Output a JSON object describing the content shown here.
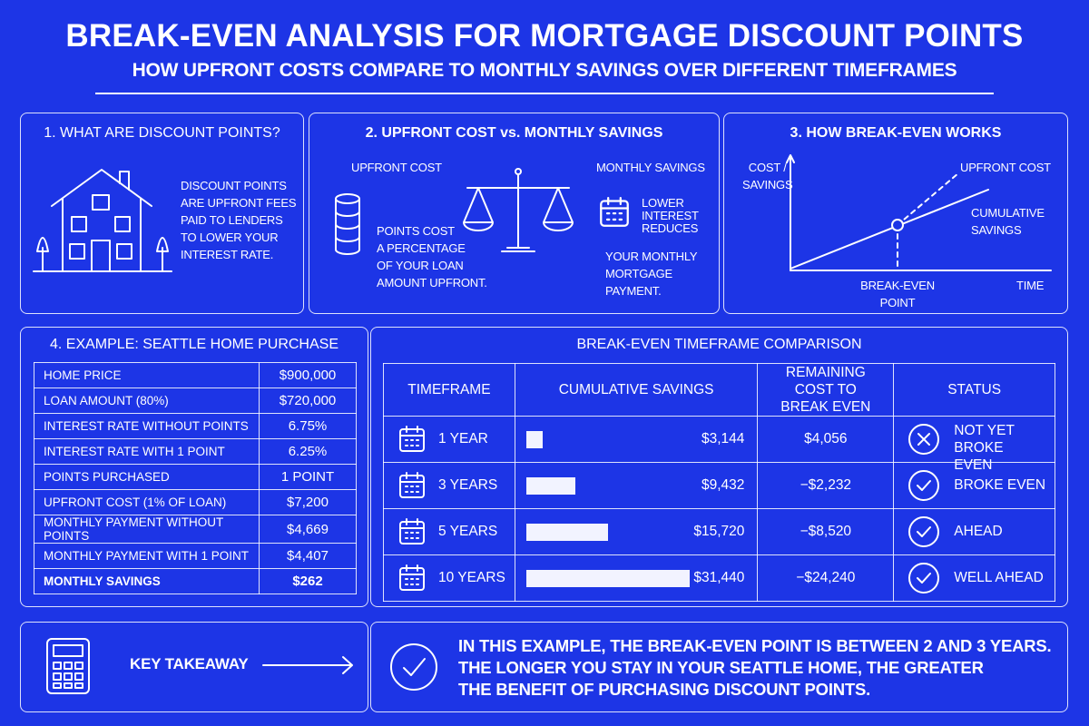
{
  "header": {
    "title": "BREAK-EVEN ANALYSIS FOR MORTGAGE DISCOUNT POINTS",
    "subtitle": "HOW UPFRONT COSTS COMPARE TO MONTHLY SAVINGS OVER DIFFERENT TIMEFRAMES"
  },
  "panel1": {
    "title": "1. WHAT ARE DISCOUNT POINTS?",
    "lines": [
      "DISCOUNT POINTS",
      "ARE UPFRONT FEES",
      "PAID TO LENDERS",
      "TO LOWER YOUR",
      "INTEREST RATE."
    ]
  },
  "panel2": {
    "title": "2. UPFRONT COST vs. MONTHLY SAVINGS",
    "upfront_label": "UPFRONT COST",
    "upfront_lines": [
      "POINTS COST",
      "A PERCENTAGE",
      "OF YOUR LOAN",
      "AMOUNT UPFRONT."
    ],
    "savings_label": "MONTHLY SAVINGS",
    "savings_lines": [
      "LOWER",
      "INTEREST",
      "REDUCES",
      "YOUR MONTHLY",
      "MORTGAGE",
      "PAYMENT."
    ]
  },
  "panel3": {
    "title": "3. HOW BREAK-EVEN WORKS",
    "y_label": [
      "COST /",
      "SAVINGS"
    ],
    "upfront_label": "UPFRONT COST",
    "savings_label": [
      "CUMULATIVE",
      "SAVINGS"
    ],
    "point_label": [
      "BREAK-EVEN",
      "POINT"
    ],
    "x_label": "TIME"
  },
  "example": {
    "title": "4. EXAMPLE: SEATTLE HOME PURCHASE",
    "rows": [
      [
        "HOME PRICE",
        "$900,000"
      ],
      [
        "LOAN AMOUNT (80%)",
        "$720,000"
      ],
      [
        "INTEREST RATE WITHOUT POINTS",
        "6.75%"
      ],
      [
        "INTEREST RATE WITH 1 POINT",
        "6.25%"
      ],
      [
        "POINTS PURCHASED",
        "1 POINT"
      ],
      [
        "UPFRONT COST (1% OF LOAN)",
        "$7,200"
      ],
      [
        "MONTHLY PAYMENT WITHOUT POINTS",
        "$4,669"
      ],
      [
        "MONTHLY PAYMENT WITH 1 POINT",
        "$4,407"
      ],
      [
        "MONTHLY SAVINGS",
        "$262"
      ]
    ]
  },
  "comparison": {
    "title": "BREAK-EVEN TIMEFRAME COMPARISON",
    "columns": [
      "TIMEFRAME",
      "CUMULATIVE SAVINGS",
      "REMAINING COST TO BREAK EVEN",
      "STATUS"
    ],
    "rows": [
      [
        "1 YEAR",
        "$3,144",
        "$4,056",
        "NOT YET BROKE EVEN"
      ],
      [
        "3 YEARS",
        "$9,432",
        "−$2,232",
        "BROKE EVEN"
      ],
      [
        "5 YEARS",
        "$15,720",
        "−$8,520",
        "AHEAD"
      ],
      [
        "10 YEARS",
        "$31,440",
        "−$24,240",
        "WELL AHEAD"
      ]
    ]
  },
  "takeaway": {
    "label": "KEY TAKEAWAY",
    "lines": [
      "IN THIS EXAMPLE, THE BREAK-EVEN POINT IS BETWEEN 2 AND 3 YEARS.",
      "THE LONGER YOU STAY IN YOUR SEATTLE HOME, THE GREATER",
      "THE BENEFIT OF PURCHASING DISCOUNT POINTS."
    ]
  }
}
